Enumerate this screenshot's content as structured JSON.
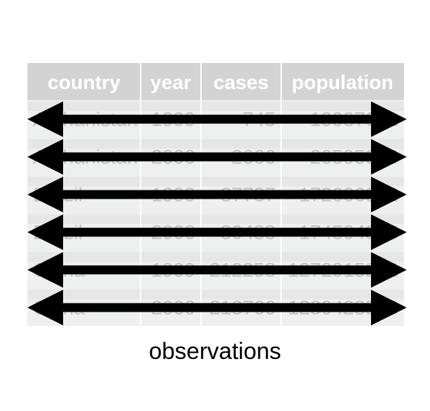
{
  "table": {
    "headers": [
      "country",
      "year",
      "cases",
      "population"
    ],
    "rows": [
      [
        "Afghanistan",
        "1999",
        "745",
        "19987071"
      ],
      [
        "Afghanistan",
        "2000",
        "2666",
        "20595360"
      ],
      [
        "Brazil",
        "1999",
        "37737",
        "172006362"
      ],
      [
        "Brazil",
        "2000",
        "80488",
        "174504898"
      ],
      [
        "China",
        "1999",
        "212258",
        "1272915272"
      ],
      [
        "China",
        "2000",
        "213766",
        "1280428583"
      ]
    ]
  },
  "colors": {
    "header_background": "#d3d3d3",
    "header_text": "#ffffff",
    "row_background": "#eef0ef",
    "cell_text": "#c2c3c2",
    "arrow": "#000000"
  },
  "caption": "observations"
}
